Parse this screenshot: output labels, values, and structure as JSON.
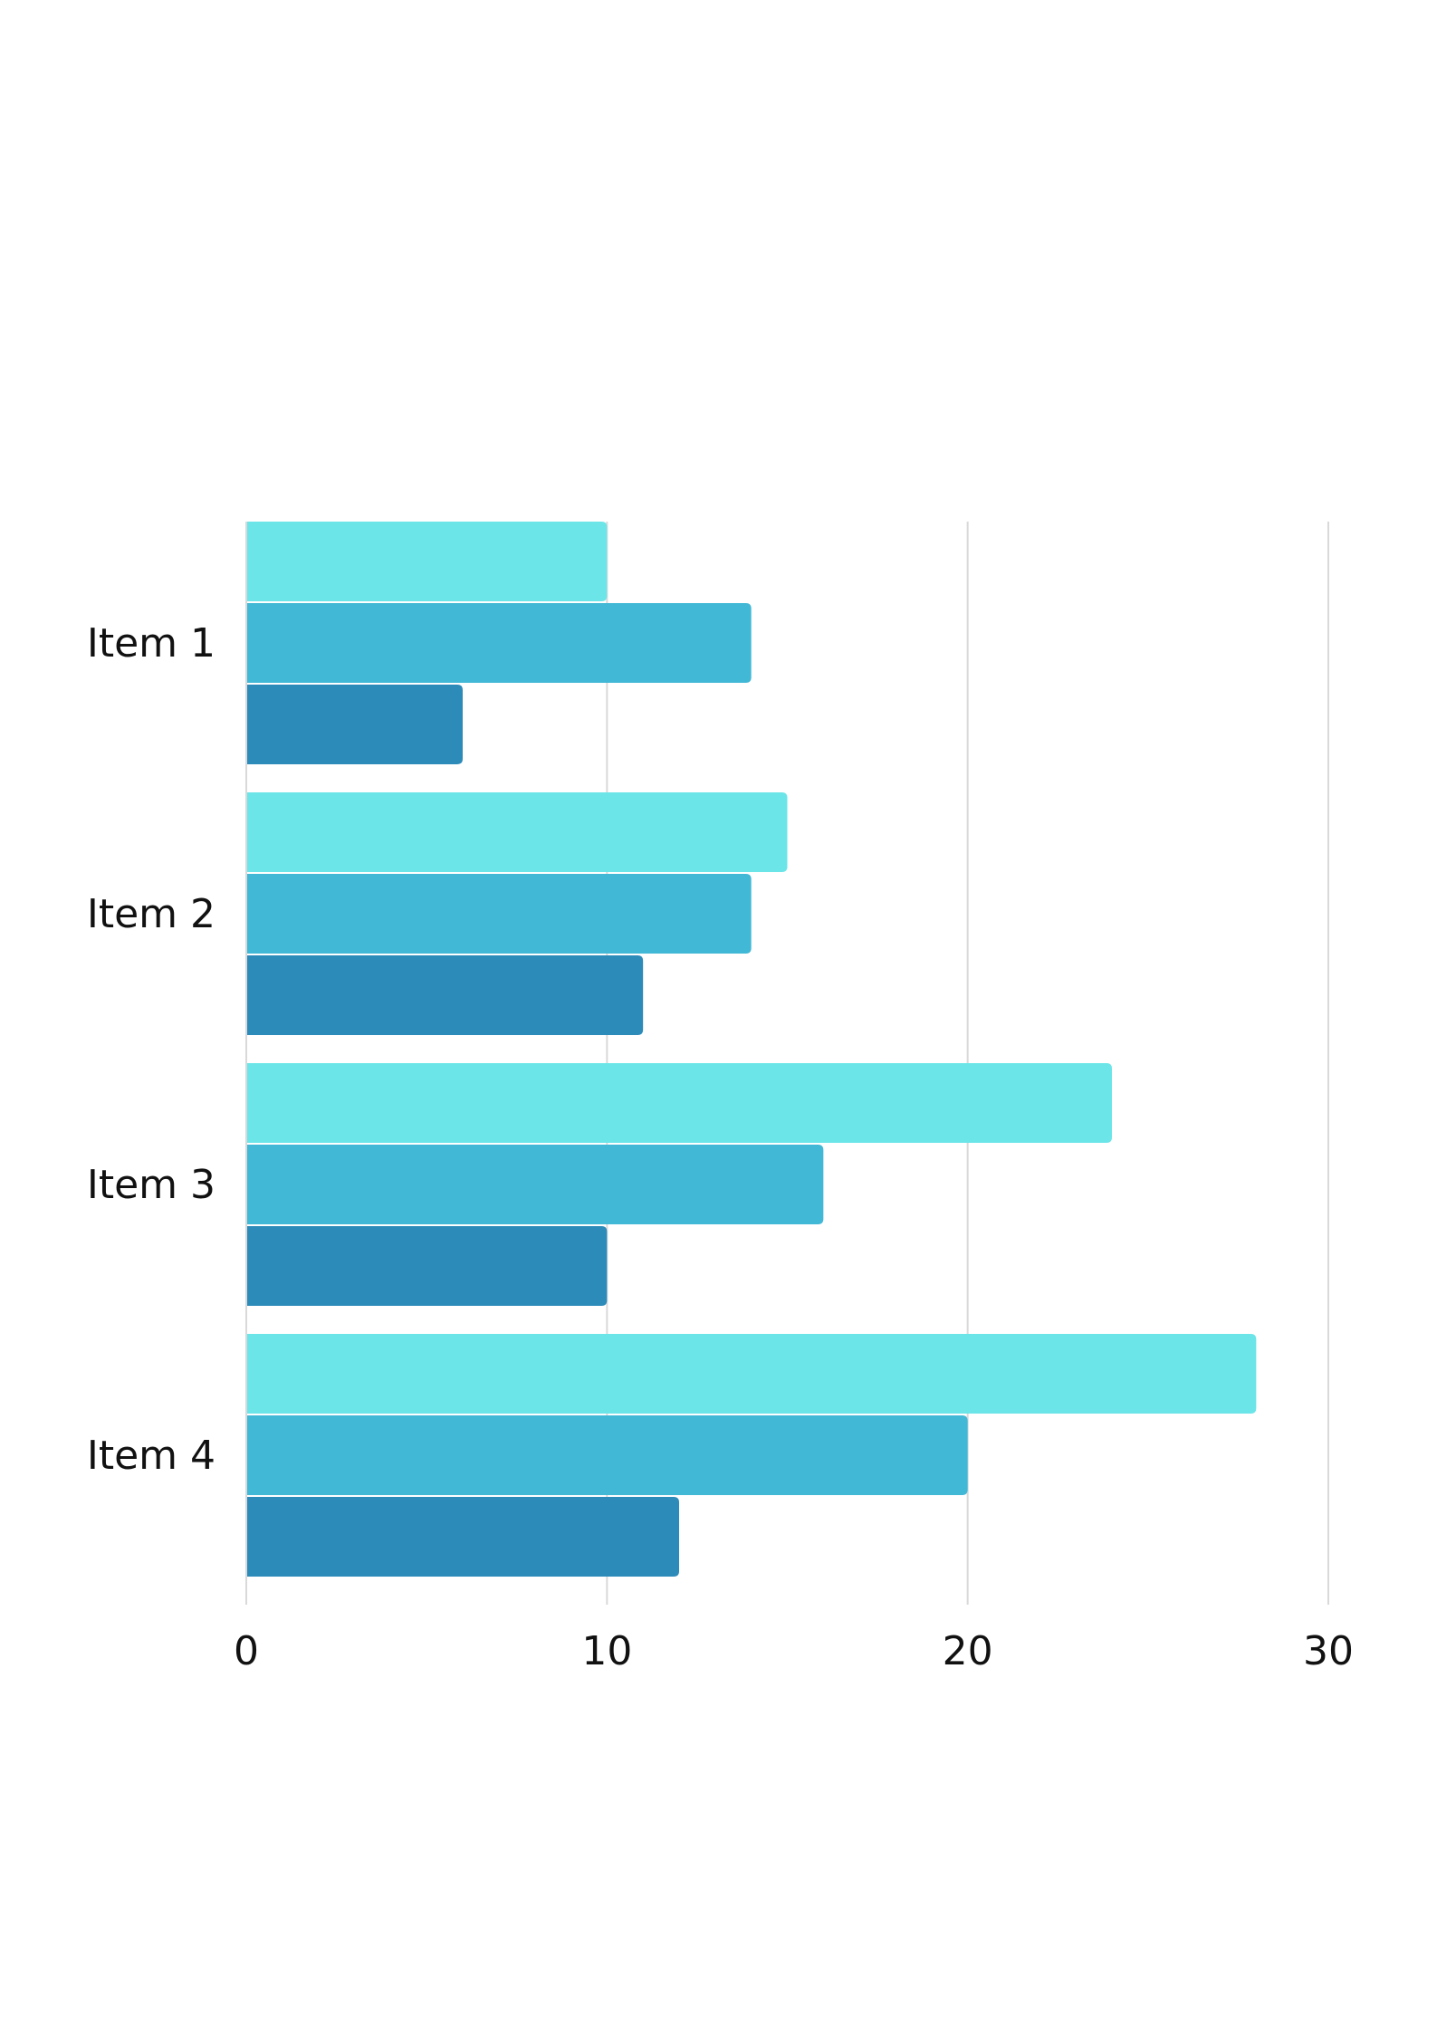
{
  "chart_data": {
    "type": "bar",
    "orientation": "horizontal",
    "categories": [
      "Item 1",
      "Item 2",
      "Item 3",
      "Item 4"
    ],
    "series": [
      {
        "values": [
          10,
          15,
          24,
          28
        ],
        "color": "#6ce5e8"
      },
      {
        "values": [
          14,
          14,
          16,
          20
        ],
        "color": "#41b8d5"
      },
      {
        "values": [
          6,
          11,
          10,
          12
        ],
        "color": "#2d8bba"
      }
    ],
    "xlim": [
      0,
      30
    ],
    "xticks": [
      "0",
      "10",
      "20",
      "30"
    ],
    "grid": true,
    "legend": "none",
    "title": "",
    "xlabel": "",
    "ylabel": ""
  }
}
